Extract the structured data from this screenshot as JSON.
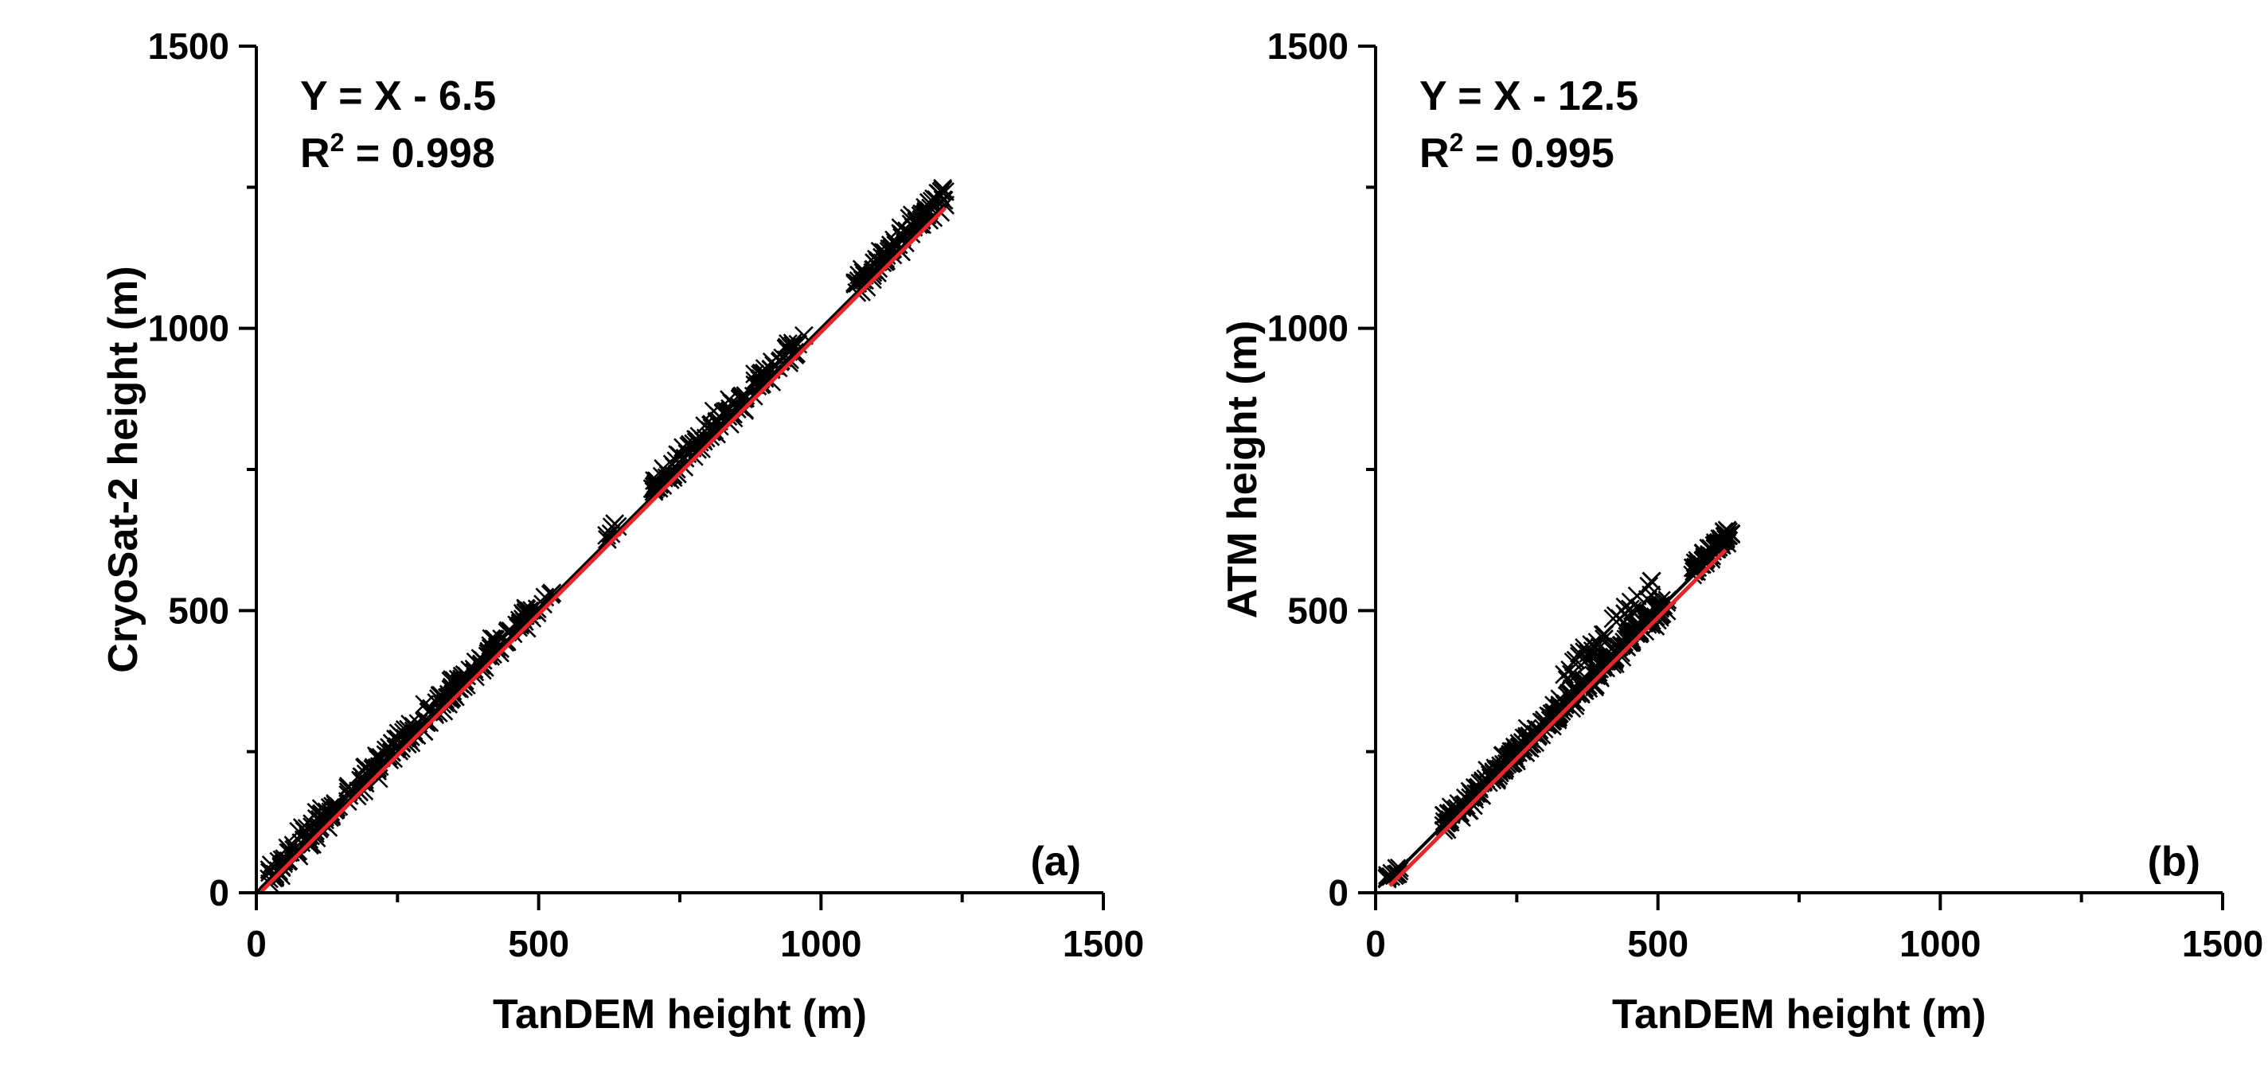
{
  "chart_data": [
    {
      "type": "scatter",
      "panel_label": "(a)",
      "xlabel": "TanDEM height (m)",
      "ylabel": "CryoSat-2 height (m)",
      "xlim": [
        0,
        1500
      ],
      "ylim": [
        0,
        1500
      ],
      "x_ticks": [
        0,
        500,
        1000,
        1500
      ],
      "y_ticks": [
        0,
        500,
        1000,
        1500
      ],
      "x_tick_labels": [
        "0",
        "500",
        "1000",
        "1500"
      ],
      "y_tick_labels": [
        "0",
        "500",
        "1000",
        "1500"
      ],
      "grid": false,
      "equation": "Y = X - 6.5",
      "r2_prefix": "R",
      "r2_sup": "2",
      "r2_suffix": " = 0.998",
      "fit": {
        "slope": 1.0,
        "intercept": -6.5,
        "x_range": [
          10,
          1220
        ],
        "color": "#e8262a"
      },
      "reference_line": {
        "x_range": [
          0,
          1220
        ],
        "color": "#000000"
      },
      "marker": "x",
      "marker_color": "#000000",
      "clusters": [
        {
          "x_range": [
            20,
            480
          ],
          "n": 260,
          "offset": 10,
          "spread": 22
        },
        {
          "x_range": [
            480,
            530
          ],
          "n": 10,
          "offset": 5,
          "spread": 10
        },
        {
          "x_range": [
            615,
            640
          ],
          "n": 6,
          "offset": 8,
          "spread": 12
        },
        {
          "x_range": [
            700,
            870
          ],
          "n": 90,
          "offset": 15,
          "spread": 22
        },
        {
          "x_range": [
            880,
            970
          ],
          "n": 45,
          "offset": 15,
          "spread": 20
        },
        {
          "x_range": [
            1060,
            1220
          ],
          "n": 100,
          "offset": 15,
          "spread": 22
        }
      ]
    },
    {
      "type": "scatter",
      "panel_label": "(b)",
      "xlabel": "TanDEM height (m)",
      "ylabel": "ATM height (m)",
      "xlim": [
        0,
        1500
      ],
      "ylim": [
        0,
        1500
      ],
      "x_ticks": [
        0,
        500,
        1000,
        1500
      ],
      "y_ticks": [
        0,
        500,
        1000,
        1500
      ],
      "x_tick_labels": [
        "0",
        "500",
        "1000",
        "1500"
      ],
      "y_tick_labels": [
        "0",
        "500",
        "1000",
        "1500"
      ],
      "grid": false,
      "equation": "Y = X - 12.5",
      "r2_prefix": "R",
      "r2_sup": "2",
      "r2_suffix": " = 0.995",
      "fit": {
        "slope": 1.0,
        "intercept": -12.5,
        "x_range": [
          25,
          620
        ],
        "color": "#e8262a"
      },
      "reference_line": {
        "x_range": [
          20,
          640
        ],
        "color": "#000000"
      },
      "marker": "x",
      "marker_color": "#000000",
      "clusters": [
        {
          "x_range": [
            20,
            45
          ],
          "n": 12,
          "offset": 0,
          "spread": 12
        },
        {
          "x_range": [
            120,
            520
          ],
          "n": 320,
          "offset": 0,
          "spread": 18
        },
        {
          "x_range": [
            330,
            500
          ],
          "n": 40,
          "offset": 50,
          "spread": 20
        },
        {
          "x_range": [
            560,
            630
          ],
          "n": 70,
          "offset": 10,
          "spread": 12
        }
      ]
    }
  ]
}
